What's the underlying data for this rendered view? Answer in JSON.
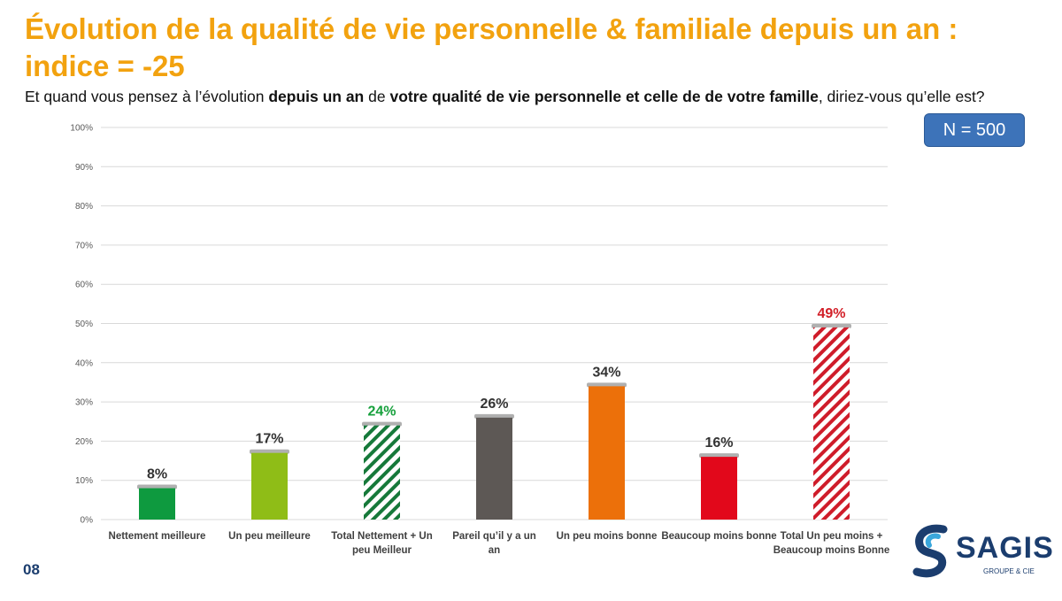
{
  "header": {
    "title": "Évolution de la qualité de vie personnelle & familiale depuis un an : indice = -25",
    "question": {
      "part1": "Et quand vous pensez à l’évolution ",
      "bold1": "depuis un an",
      "part2": " de ",
      "bold2": "votre qualité de vie personnelle et celle de de votre famille",
      "part3": ", diriez-vous qu’elle est?"
    },
    "sample_size": "N = 500"
  },
  "chart_data": {
    "type": "bar",
    "categories": [
      "Nettement meilleure",
      "Un peu meilleure",
      "Total Nettement + Un peu Meilleur",
      "Pareil qu’il y a un an",
      "Un peu moins bonne",
      "Beaucoup moins bonne",
      "Total Un peu moins + Beaucoup moins Bonne"
    ],
    "values": [
      8,
      17,
      24,
      26,
      34,
      16,
      49
    ],
    "data_labels": [
      "8%",
      "17%",
      "24%",
      "26%",
      "34%",
      "16%",
      "49%"
    ],
    "colors": [
      "#0e9a3f",
      "#8fbd17",
      "#16793a",
      "#5d5855",
      "#ec700a",
      "#e2081b",
      "#cf1c2a"
    ],
    "label_colors": [
      "#333333",
      "#333333",
      "#16a03c",
      "#333333",
      "#333333",
      "#333333",
      "#d21e27"
    ],
    "hatched": [
      false,
      false,
      true,
      false,
      false,
      false,
      true
    ],
    "ylim": [
      0,
      100
    ],
    "yticks": [
      "0%",
      "10%",
      "20%",
      "30%",
      "40%",
      "50%",
      "60%",
      "70%",
      "80%",
      "90%",
      "100%"
    ],
    "grid": true,
    "xlabel": "",
    "ylabel": ""
  },
  "footer": {
    "page_number": "08",
    "logo_name": "SAGIS",
    "logo_subtitle": "GROUPE & CIE",
    "logo_icon": "sagis-s-logo-icon"
  }
}
